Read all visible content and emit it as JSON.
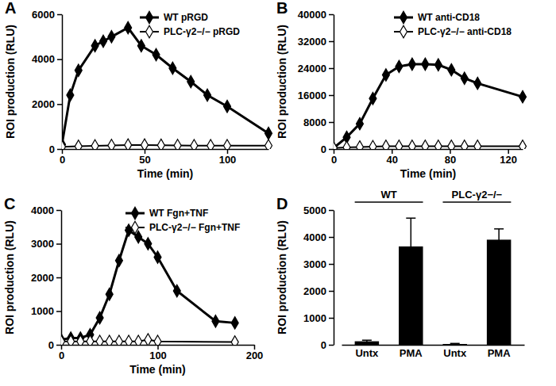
{
  "chart_data": [
    {
      "type": "line",
      "title": "A",
      "x_label": "Time (min)",
      "y_label": "ROI production (RLU)",
      "xlim": [
        0,
        125
      ],
      "xticks": [
        0,
        50,
        100
      ],
      "ylim": [
        0,
        6000
      ],
      "yticks": [
        0,
        2000,
        4000,
        6000
      ],
      "legend": "top-right",
      "series": [
        {
          "name": "WT pRGD",
          "color": "#000000",
          "marker": "diamond",
          "x": [
            0,
            5,
            10,
            20,
            25,
            30,
            40,
            48,
            57,
            67,
            78,
            88,
            100,
            125
          ],
          "values": [
            200,
            2400,
            3500,
            4600,
            4800,
            5000,
            5400,
            4600,
            4200,
            3600,
            3000,
            2400,
            1900,
            700
          ]
        },
        {
          "name": "PLC-γ2−/− pRGD",
          "color": "#000000",
          "marker": "diamond-open",
          "x": [
            0,
            10,
            20,
            30,
            40,
            50,
            60,
            70,
            80,
            90,
            100,
            125
          ],
          "values": [
            100,
            120,
            140,
            160,
            180,
            180,
            170,
            160,
            150,
            150,
            150,
            150
          ]
        }
      ]
    },
    {
      "type": "line",
      "title": "B",
      "x_label": "Time (min)",
      "y_label": "ROI production (RLU)",
      "xlim": [
        0,
        130
      ],
      "xticks": [
        0,
        40,
        80,
        120
      ],
      "ylim": [
        0,
        40000
      ],
      "yticks": [
        0,
        8000,
        16000,
        24000,
        32000,
        40000
      ],
      "legend": "top-right",
      "series": [
        {
          "name": "WT anti-CD18",
          "color": "#000000",
          "marker": "diamond",
          "x": [
            0,
            9,
            18,
            27,
            36,
            45,
            54,
            63,
            72,
            81,
            90,
            99,
            130
          ],
          "values": [
            300,
            3500,
            7500,
            15000,
            22000,
            24500,
            25200,
            25200,
            25000,
            23500,
            21000,
            19500,
            15500
          ]
        },
        {
          "name": "PLC-γ2−/− anti-CD18",
          "color": "#000000",
          "marker": "diamond-open",
          "x": [
            0,
            9,
            18,
            27,
            36,
            45,
            54,
            63,
            72,
            81,
            90,
            99,
            130
          ],
          "values": [
            300,
            500,
            600,
            700,
            800,
            800,
            800,
            800,
            800,
            800,
            800,
            800,
            800
          ]
        }
      ]
    },
    {
      "type": "line",
      "title": "C",
      "x_label": "Time (min)",
      "y_label": "ROI production (RLU)",
      "xlim": [
        0,
        200
      ],
      "xticks": [
        0,
        100,
        200
      ],
      "ylim": [
        0,
        4000
      ],
      "yticks": [
        0,
        1000,
        2000,
        3000,
        4000
      ],
      "legend": "top-right",
      "series": [
        {
          "name": "WT Fgn+TNF",
          "color": "#000000",
          "marker": "diamond",
          "x": [
            0,
            10,
            20,
            30,
            40,
            50,
            60,
            70,
            80,
            90,
            100,
            120,
            160,
            180
          ],
          "values": [
            150,
            200,
            200,
            300,
            800,
            1500,
            2500,
            3400,
            3200,
            3000,
            2600,
            1600,
            700,
            650
          ]
        },
        {
          "name": "PLC-γ2−/− Fgn+TNF",
          "color": "#000000",
          "marker": "diamond-open",
          "x": [
            0,
            10,
            20,
            30,
            40,
            50,
            60,
            70,
            80,
            90,
            100,
            180
          ],
          "values": [
            100,
            100,
            100,
            100,
            100,
            100,
            100,
            100,
            100,
            150,
            100,
            80
          ]
        }
      ]
    },
    {
      "type": "bar",
      "title": "D",
      "y_label": "ROI production (RLU)",
      "categories": [
        "Untx",
        "PMA",
        "Untx",
        "PMA"
      ],
      "values": [
        130,
        3650,
        30,
        3900
      ],
      "errors": [
        40,
        1050,
        20,
        400
      ],
      "annotations": [
        "WT",
        "PLC-γ2−/−"
      ],
      "color": "#000000",
      "ylim": [
        0,
        5000
      ],
      "yticks": [
        0,
        1000,
        2000,
        3000,
        4000,
        5000
      ]
    }
  ]
}
